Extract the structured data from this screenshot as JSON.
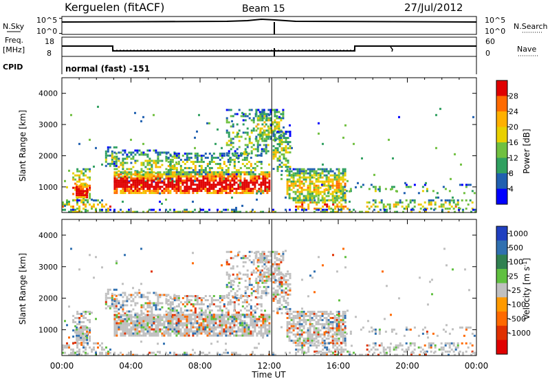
{
  "header": {
    "station": "Kerguelen (fitACF)",
    "beam": "Beam 15",
    "date": "27/Jul/2012"
  },
  "top_panels": {
    "nsky_label": "N.Sky",
    "nsky_ticks": [
      "10^5",
      "10^0"
    ],
    "nsearch_label": "N.Search",
    "nsearch_ticks": [
      "10^5",
      "10^0"
    ],
    "freq_label_1": "Freq.",
    "freq_label_2": "[MHz]",
    "freq_ticks": [
      "18",
      "8"
    ],
    "nave_label": "Nave",
    "nave_ticks": [
      "60",
      "0"
    ],
    "cpid_label": "CPID",
    "cpid_value": "normal (fast) -151"
  },
  "axes": {
    "xlabel": "Time UT",
    "x_ticks": [
      "00:00",
      "04:00",
      "08:00",
      "12:00",
      "16:00",
      "20:00",
      "00:00"
    ],
    "ylabel": "Slant Range [km]",
    "y_ticks": [
      "4000",
      "3000",
      "2000",
      "1000"
    ]
  },
  "colorbars": {
    "power": {
      "label": "Power [dB]",
      "ticks": [
        "28",
        "24",
        "20",
        "16",
        "12",
        "8",
        "4"
      ],
      "colors": [
        "#e00000",
        "#ff6a00",
        "#ffb000",
        "#e8d000",
        "#70c040",
        "#30a060",
        "#2060b0",
        "#0000ff"
      ]
    },
    "velocity": {
      "label": "Velocity [m s",
      "label_sup": "-1",
      "label_end": "]",
      "ticks": [
        "1000",
        "500",
        "100",
        "25",
        "-25",
        "-100",
        "-500",
        "-1000"
      ],
      "colors": [
        "#2040c0",
        "#3070b0",
        "#308050",
        "#60c040",
        "#c0c0c0",
        "#ff9a00",
        "#ff6a00",
        "#e03000",
        "#e00000"
      ]
    }
  },
  "chart_data": [
    {
      "type": "line",
      "title": "",
      "ylabel": "N.Sky",
      "x": [
        "00:00",
        "04:00",
        "08:00",
        "12:00",
        "16:00",
        "20:00",
        "24:00"
      ],
      "values": [
        3000,
        3000,
        3500,
        3800,
        3000,
        3000,
        3000
      ],
      "yscale": "log",
      "ylim": [
        1,
        100000
      ]
    },
    {
      "type": "line",
      "ylabel": "Freq. [MHz]",
      "x": [
        "00:00",
        "02:50",
        "02:51",
        "17:00",
        "17:01",
        "24:00"
      ],
      "values": [
        12.5,
        12.5,
        10.5,
        10.5,
        12.5,
        12.5
      ],
      "ylim": [
        8,
        18
      ]
    },
    {
      "type": "heatmap",
      "ylabel": "Slant Range [km]",
      "zlabel": "Power [dB]",
      "xlim": [
        0,
        24
      ],
      "ylim": [
        180,
        4500
      ],
      "zlim": [
        0,
        32
      ]
    },
    {
      "type": "heatmap",
      "ylabel": "Slant Range [km]",
      "zlabel": "Velocity [m s-1]",
      "xlim": [
        0,
        24
      ],
      "ylim": [
        180,
        4500
      ],
      "zlim": [
        -1200,
        1200
      ]
    }
  ]
}
